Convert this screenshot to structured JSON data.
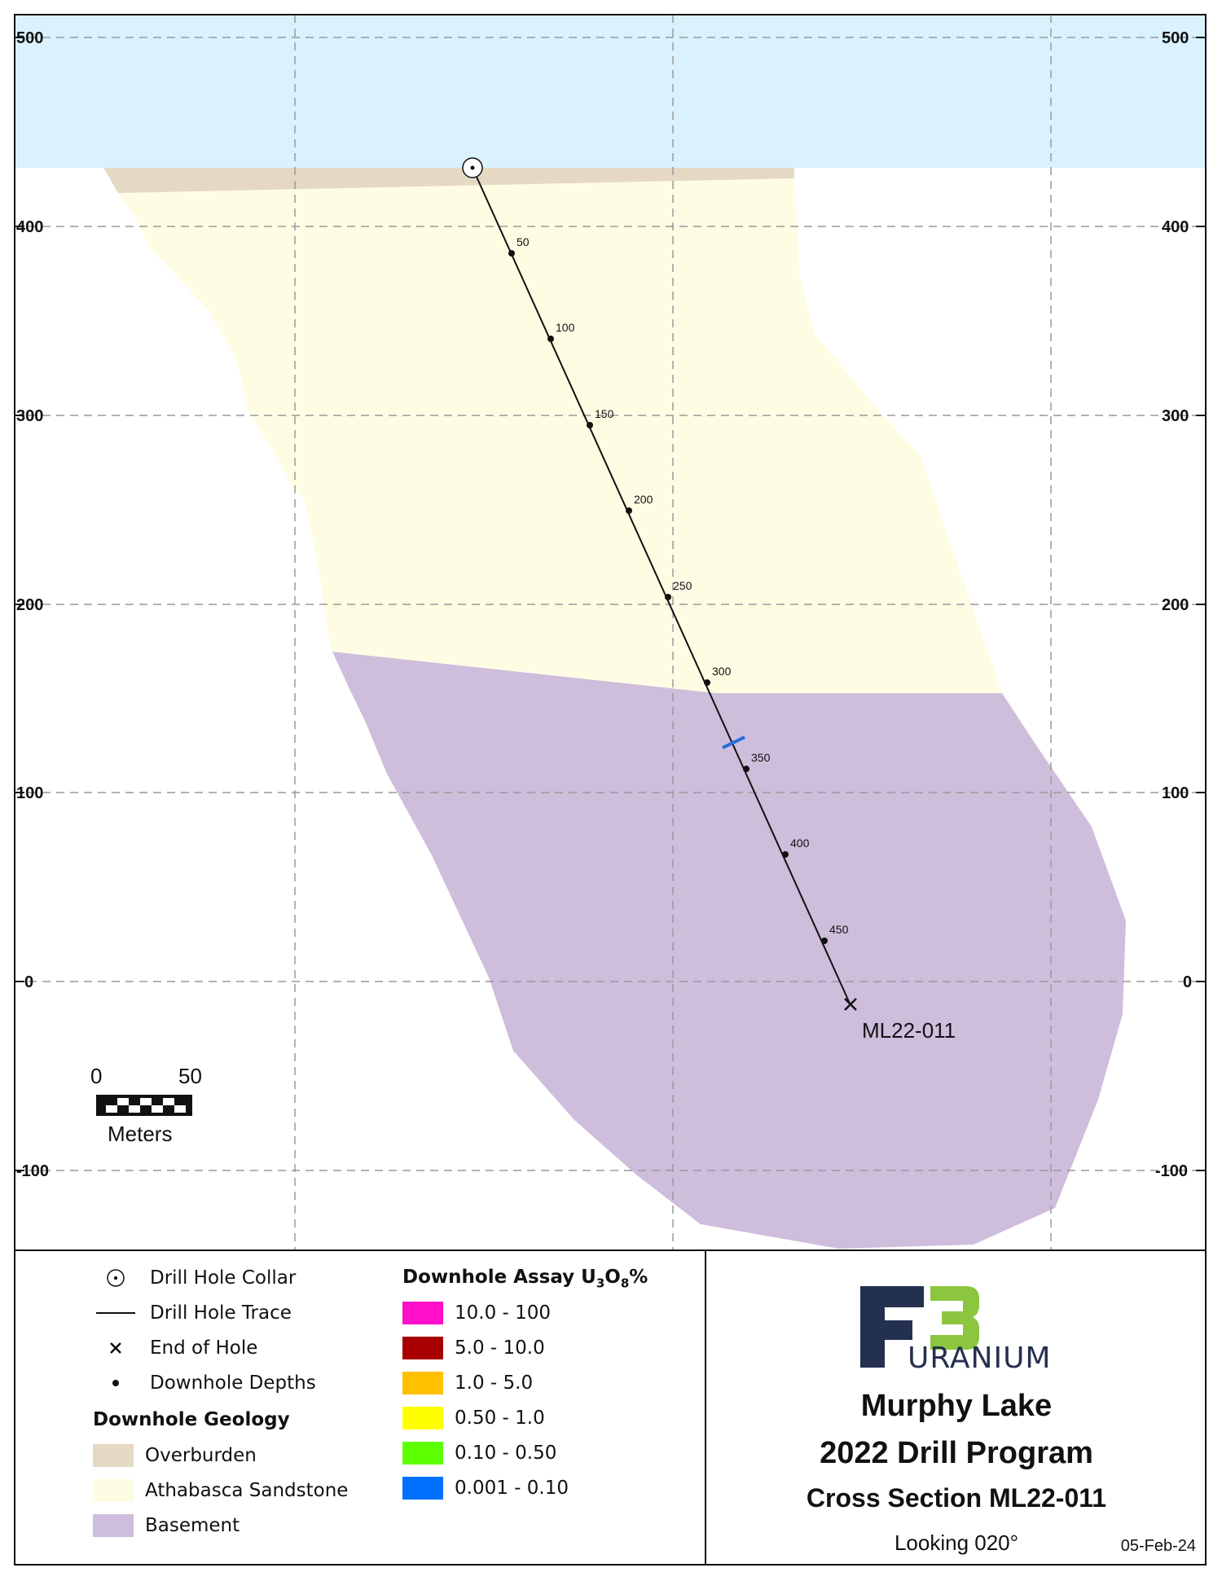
{
  "section": {
    "y_ticks": [
      500,
      400,
      300,
      200,
      100,
      0,
      -100
    ],
    "y_tick_labels": [
      "500",
      "400",
      "300",
      "200",
      "100",
      "0",
      "-100"
    ],
    "drill_hole": {
      "name": "ML22-011",
      "depth_labels": [
        "50",
        "100",
        "150",
        "200",
        "250",
        "300",
        "350",
        "400",
        "450"
      ]
    },
    "scale_bar": {
      "start": "0",
      "end": "50",
      "unit": "Meters"
    }
  },
  "legend": {
    "symbols": [
      {
        "name": "drill-hole-collar",
        "label": "Drill Hole Collar"
      },
      {
        "name": "drill-hole-trace",
        "label": "Drill Hole Trace"
      },
      {
        "name": "end-of-hole",
        "label": "End of Hole"
      },
      {
        "name": "downhole-depths",
        "label": "Downhole Depths"
      }
    ],
    "geology_heading": "Downhole Geology",
    "geology": [
      {
        "label": "Overburden",
        "color": "#e6d9c3"
      },
      {
        "label": "Athabasca Sandstone",
        "color": "#fefde4"
      },
      {
        "label": "Basement",
        "color": "#cfbddc"
      }
    ],
    "assay_heading_prefix": "Downhole Assay U",
    "assay_heading_sub1": "3",
    "assay_heading_mid": "O",
    "assay_heading_sub2": "8",
    "assay_heading_suffix": "%",
    "assay": [
      {
        "label": "10.0 - 100",
        "color": "#ff10c8"
      },
      {
        "label": "5.0 - 10.0",
        "color": "#a80000"
      },
      {
        "label": "1.0 - 5.0",
        "color": "#ffc000"
      },
      {
        "label": "0.50 - 1.0",
        "color": "#ffff00"
      },
      {
        "label": "0.10 - 0.50",
        "color": "#5cff00"
      },
      {
        "label": "0.001 - 0.10",
        "color": "#0070ff"
      }
    ]
  },
  "title_block": {
    "logo_number": "3",
    "logo_text": "URANIUM",
    "project": "Murphy Lake",
    "program": "2022 Drill Program",
    "section_title": "Cross Section ML22-011",
    "looking": "Looking 020°",
    "date": "05-Feb-24"
  },
  "colors": {
    "sky": "#d9f2fe",
    "overburden": "#e6d9c3",
    "sandstone": "#fefde4",
    "basement": "#cfbddc",
    "intercept": "#1f6fe0",
    "logo_navy": "#24304f",
    "logo_green": "#8cc63f"
  }
}
